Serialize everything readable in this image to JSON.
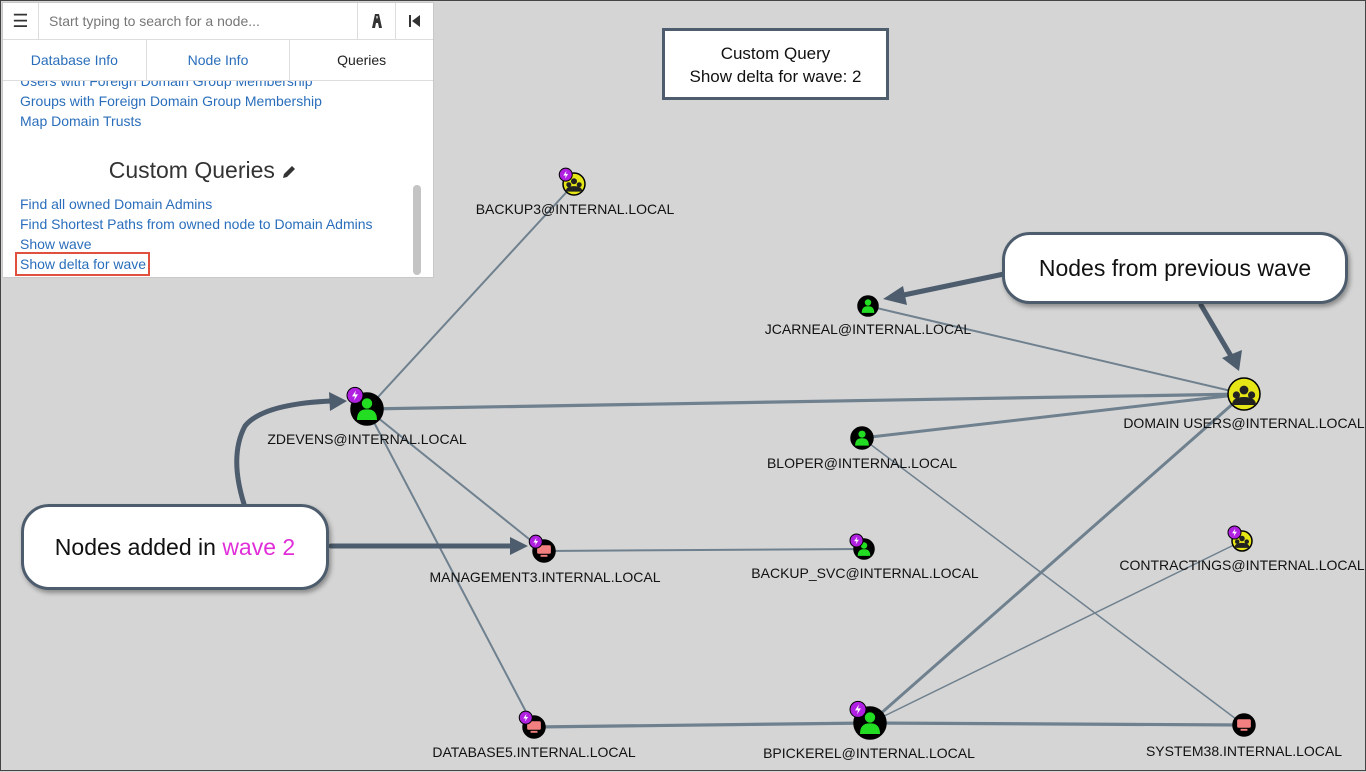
{
  "search": {
    "placeholder": "Start typing to search for a node..."
  },
  "tabs": [
    {
      "label": "Database Info"
    },
    {
      "label": "Node Info"
    },
    {
      "label": "Queries"
    }
  ],
  "queries": {
    "prebuilt": [
      "Users with Foreign Domain Group Membership",
      "Groups with Foreign Domain Group Membership",
      "Map Domain Trusts"
    ],
    "custom_heading": "Custom Queries",
    "custom": [
      "Find all owned Domain Admins",
      "Find Shortest Paths from owned node to Domain Admins",
      "Show wave",
      "Show delta for wave"
    ]
  },
  "info_box": {
    "line1": "Custom Query",
    "line2": "Show delta for wave: 2"
  },
  "callouts": {
    "previous_wave": "Nodes from previous wave",
    "added_prefix": "Nodes added in ",
    "added_highlight": "wave 2"
  },
  "colors": {
    "user_node": "#22dd22",
    "group_node": "#e6e617",
    "computer_node": "#f28080",
    "owned_badge": "#b020e0",
    "edge": "#6f808e",
    "callout_border": "#4d5d6d",
    "highlight_text": "#e02fd9",
    "selection_box": "#e0503f"
  },
  "graph": {
    "nodes": [
      {
        "id": "backup3",
        "label": "BACKUP3@INTERNAL.LOCAL",
        "type": "group",
        "owned": true
      },
      {
        "id": "jcarneal",
        "label": "JCARNEAL@INTERNAL.LOCAL",
        "type": "user",
        "owned": false
      },
      {
        "id": "domainusers",
        "label": "DOMAIN USERS@INTERNAL.LOCAL",
        "type": "group",
        "owned": false
      },
      {
        "id": "zdevens",
        "label": "ZDEVENS@INTERNAL.LOCAL",
        "type": "user",
        "owned": true
      },
      {
        "id": "bloper",
        "label": "BLOPER@INTERNAL.LOCAL",
        "type": "user",
        "owned": false
      },
      {
        "id": "management3",
        "label": "MANAGEMENT3.INTERNAL.LOCAL",
        "type": "computer",
        "owned": true
      },
      {
        "id": "backupsvc",
        "label": "BACKUP_SVC@INTERNAL.LOCAL",
        "type": "user",
        "owned": true
      },
      {
        "id": "contractings",
        "label": "CONTRACTINGS@INTERNAL.LOCAL",
        "type": "group",
        "owned": true
      },
      {
        "id": "database5",
        "label": "DATABASE5.INTERNAL.LOCAL",
        "type": "computer",
        "owned": true
      },
      {
        "id": "bpickerel",
        "label": "BPICKEREL@INTERNAL.LOCAL",
        "type": "user",
        "owned": true
      },
      {
        "id": "system38",
        "label": "SYSTEM38.INTERNAL.LOCAL",
        "type": "computer",
        "owned": false
      }
    ],
    "edges": [
      {
        "from": "zdevens",
        "to": "backup3"
      },
      {
        "from": "zdevens",
        "to": "domainusers"
      },
      {
        "from": "zdevens",
        "to": "management3"
      },
      {
        "from": "zdevens",
        "to": "database5"
      },
      {
        "from": "jcarneal",
        "to": "domainusers"
      },
      {
        "from": "bloper",
        "to": "domainusers"
      },
      {
        "from": "bloper",
        "to": "system38"
      },
      {
        "from": "management3",
        "to": "backupsvc"
      },
      {
        "from": "database5",
        "to": "bpickerel"
      },
      {
        "from": "bpickerel",
        "to": "domainusers"
      },
      {
        "from": "bpickerel",
        "to": "contractings"
      },
      {
        "from": "bpickerel",
        "to": "system38"
      }
    ]
  }
}
